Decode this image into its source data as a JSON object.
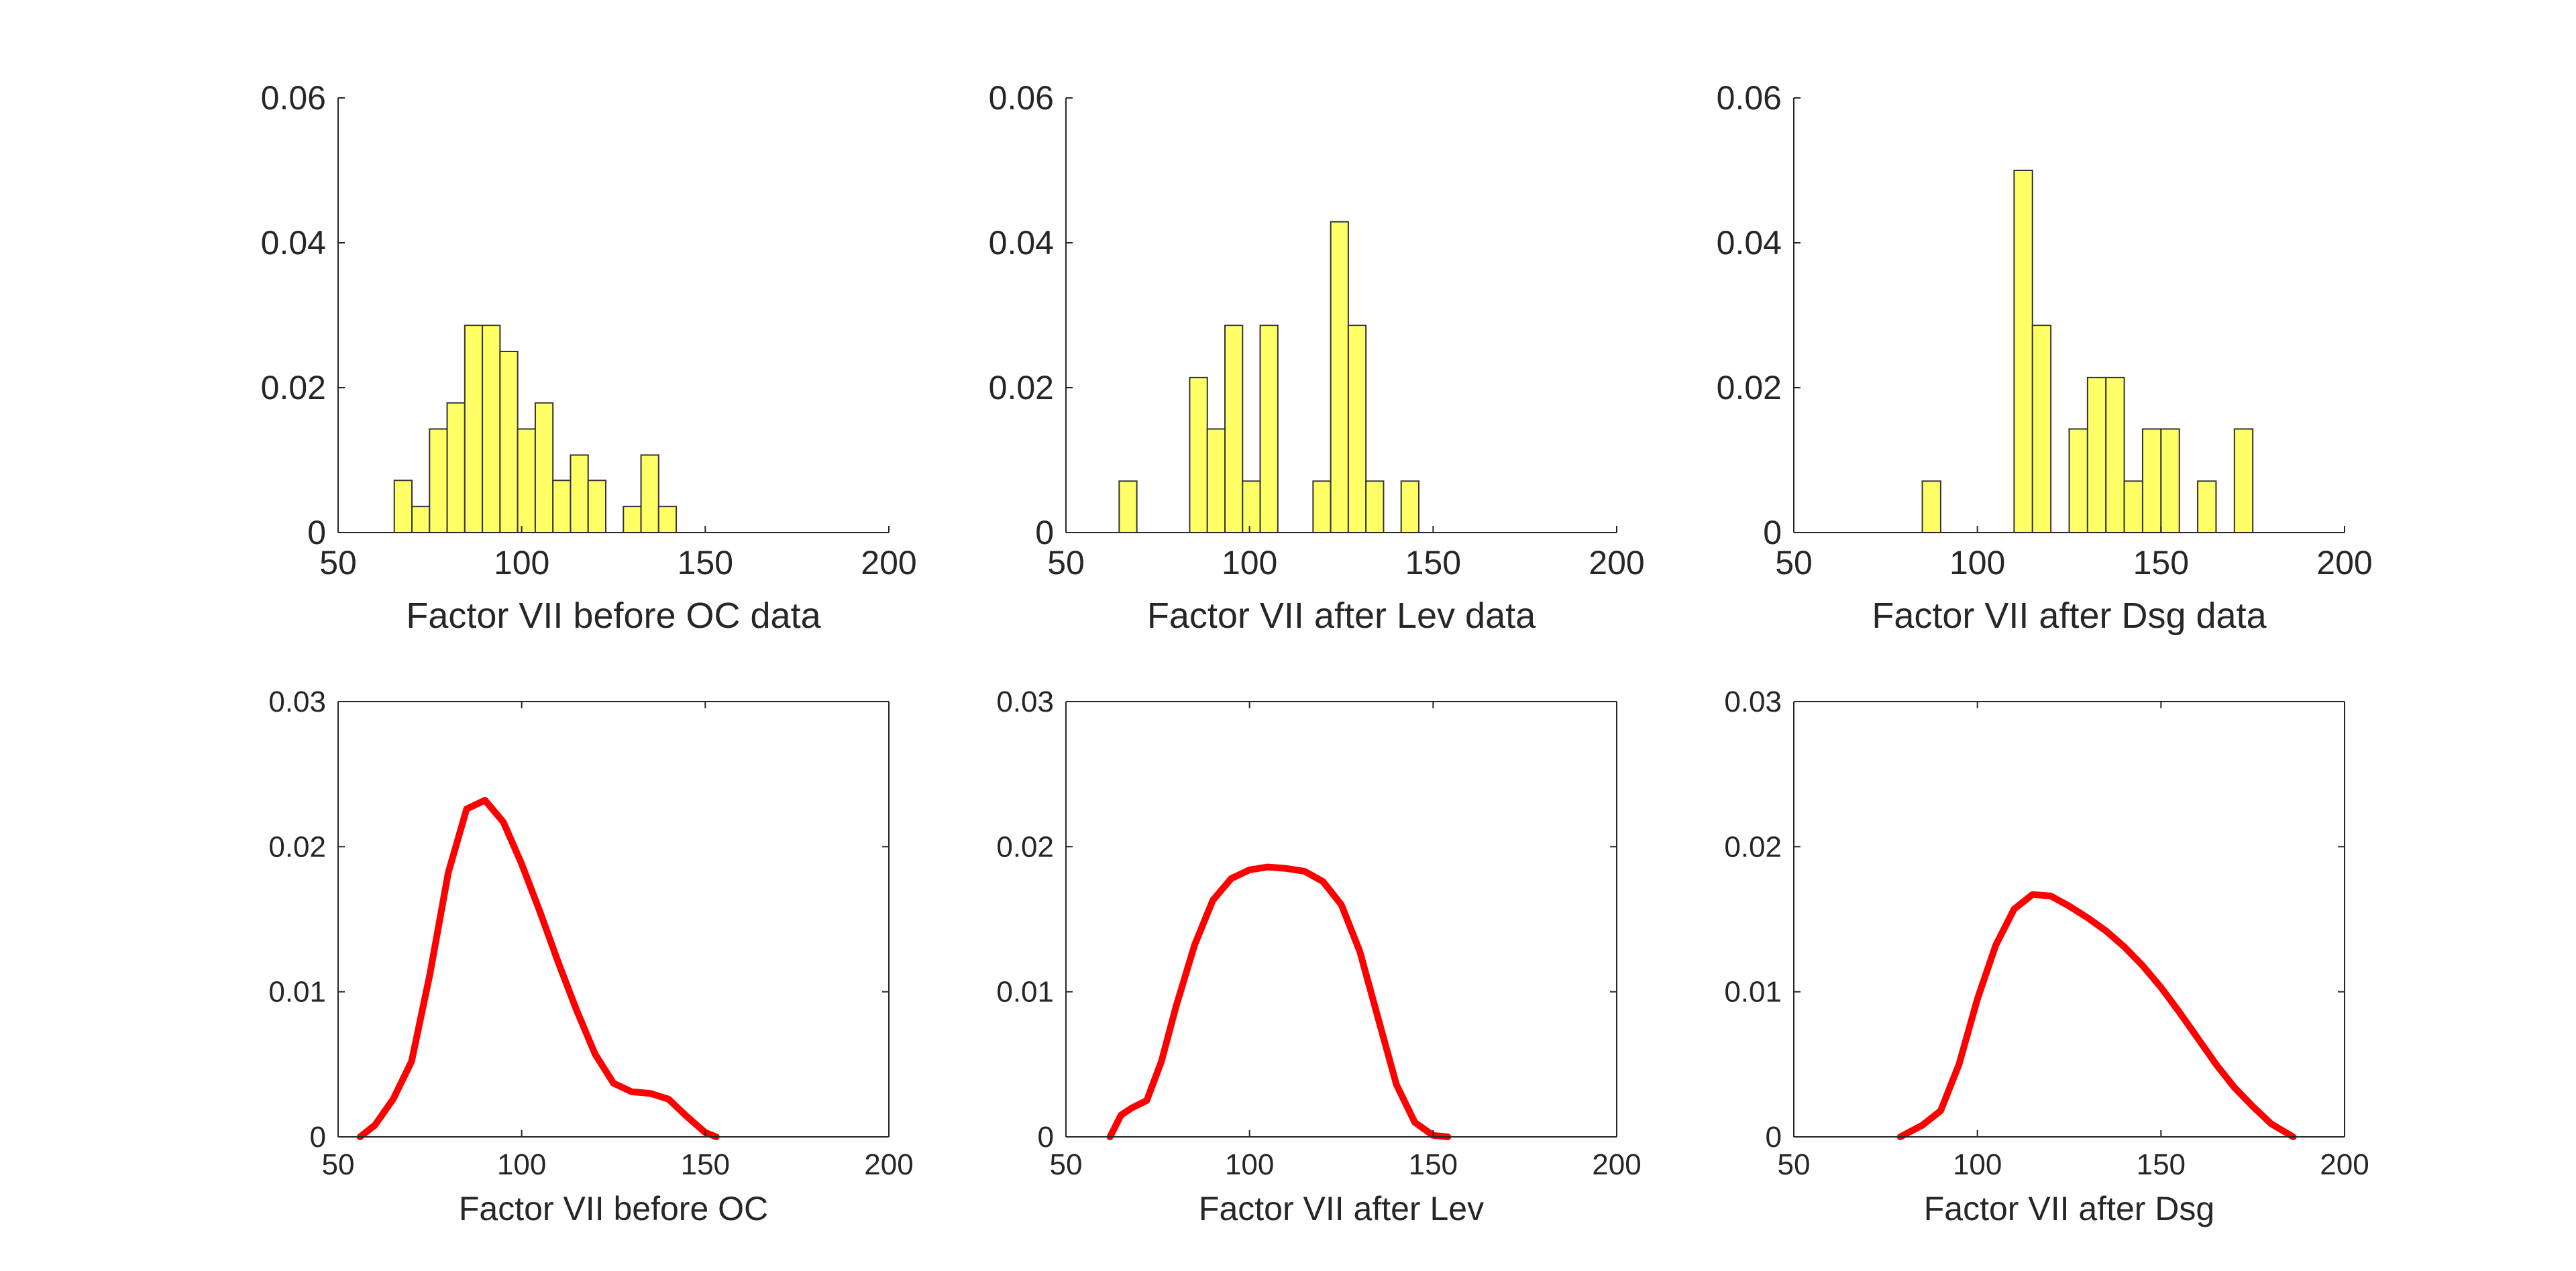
{
  "figure": {
    "background": "#ffffff"
  },
  "chart_data": [
    {
      "type": "bar",
      "subtype": "histogram",
      "xlabel": "Factor VII before OC data",
      "ylabel": "",
      "xlim": [
        50,
        200
      ],
      "ylim": [
        0,
        0.06
      ],
      "xticks": [
        50,
        100,
        150,
        200
      ],
      "xtick_labels": [
        "50",
        "100",
        "150",
        "200"
      ],
      "yticks": [
        0,
        0.02,
        0.04,
        0.06
      ],
      "ytick_labels": [
        "0",
        "0.02",
        "0.04",
        "0.06"
      ],
      "bin_width": 4.8,
      "bin_starts": [
        65.3,
        70.1,
        74.9,
        79.7,
        84.5,
        89.3,
        94.1,
        98.9,
        103.7,
        108.5,
        113.3,
        118.1,
        122.9,
        127.7,
        132.5,
        137.3,
        142.1
      ],
      "values": [
        0.0072,
        0.0036,
        0.0143,
        0.0179,
        0.0286,
        0.0286,
        0.025,
        0.0143,
        0.0179,
        0.0072,
        0.0107,
        0.0072,
        0.0,
        0.0036,
        0.0107,
        0.0036,
        0.0
      ],
      "color": "#ffff66",
      "edge_color": "#333333"
    },
    {
      "type": "bar",
      "subtype": "histogram",
      "xlabel": "Factor VII after Lev data",
      "ylabel": "",
      "xlim": [
        50,
        200
      ],
      "ylim": [
        0,
        0.06
      ],
      "xticks": [
        50,
        100,
        150,
        200
      ],
      "xtick_labels": [
        "50",
        "100",
        "150",
        "200"
      ],
      "yticks": [
        0,
        0.02,
        0.04,
        0.06
      ],
      "ytick_labels": [
        "0",
        "0.02",
        "0.04",
        "0.06"
      ],
      "bin_width": 4.8,
      "bin_starts": [
        64.5,
        69.3,
        74.1,
        78.9,
        83.7,
        88.5,
        93.3,
        98.1,
        102.9,
        107.7,
        112.5,
        117.3,
        122.1,
        126.9,
        131.7,
        136.5,
        141.3
      ],
      "values": [
        0.0071,
        0.0,
        0.0,
        0.0,
        0.0214,
        0.0143,
        0.0286,
        0.0071,
        0.0286,
        0.0,
        0.0,
        0.0071,
        0.0429,
        0.0286,
        0.0071,
        0.0,
        0.0071
      ],
      "color": "#ffff66",
      "edge_color": "#333333"
    },
    {
      "type": "bar",
      "subtype": "histogram",
      "xlabel": "Factor VII after Dsg data",
      "ylabel": "",
      "xlim": [
        50,
        200
      ],
      "ylim": [
        0,
        0.06
      ],
      "xticks": [
        50,
        100,
        150,
        200
      ],
      "xtick_labels": [
        "50",
        "100",
        "150",
        "200"
      ],
      "yticks": [
        0,
        0.02,
        0.04,
        0.06
      ],
      "ytick_labels": [
        "0",
        "0.02",
        "0.04",
        "0.06"
      ],
      "bin_width": 5.0,
      "bin_starts": [
        85,
        90,
        95,
        100,
        105,
        110,
        115,
        120,
        125,
        130,
        135,
        140,
        145,
        150,
        155,
        160,
        165,
        170
      ],
      "values": [
        0.0071,
        0.0,
        0.0,
        0.0,
        0.0,
        0.05,
        0.0286,
        0.0,
        0.0143,
        0.0214,
        0.0214,
        0.0071,
        0.0143,
        0.0143,
        0.0,
        0.0071,
        0.0,
        0.0143
      ],
      "color": "#ffff66",
      "edge_color": "#333333"
    },
    {
      "type": "line",
      "xlabel": "Factor VII before OC",
      "ylabel": "",
      "xlim": [
        50,
        200
      ],
      "ylim": [
        0,
        0.03
      ],
      "xticks": [
        50,
        100,
        150,
        200
      ],
      "xtick_labels": [
        "50",
        "100",
        "150",
        "200"
      ],
      "yticks": [
        0,
        0.01,
        0.02,
        0.03
      ],
      "ytick_labels": [
        "0",
        "0.01",
        "0.02",
        "0.03"
      ],
      "color": "#ff0000",
      "x": [
        56,
        60,
        65,
        70,
        75,
        80,
        85,
        90,
        95,
        100,
        105,
        110,
        115,
        120,
        125,
        130,
        135,
        140,
        145,
        150,
        153
      ],
      "y": [
        0.0,
        0.0008,
        0.0026,
        0.0052,
        0.0112,
        0.0182,
        0.0226,
        0.0232,
        0.0217,
        0.0188,
        0.0155,
        0.012,
        0.0087,
        0.0057,
        0.0037,
        0.0031,
        0.003,
        0.0026,
        0.0014,
        0.0003,
        0.0
      ]
    },
    {
      "type": "line",
      "xlabel": "Factor VII after Lev",
      "ylabel": "",
      "xlim": [
        50,
        200
      ],
      "ylim": [
        0,
        0.03
      ],
      "xticks": [
        50,
        100,
        150,
        200
      ],
      "xtick_labels": [
        "50",
        "100",
        "150",
        "200"
      ],
      "yticks": [
        0,
        0.01,
        0.02,
        0.03
      ],
      "ytick_labels": [
        "0",
        "0.01",
        "0.02",
        "0.03"
      ],
      "color": "#ff0000",
      "x": [
        62,
        65,
        68,
        72,
        76,
        80,
        85,
        90,
        95,
        100,
        105,
        110,
        115,
        120,
        125,
        130,
        135,
        140,
        145,
        150,
        154
      ],
      "y": [
        0.0,
        0.0015,
        0.002,
        0.0025,
        0.0052,
        0.009,
        0.0132,
        0.0163,
        0.0178,
        0.0184,
        0.0186,
        0.0185,
        0.0183,
        0.0176,
        0.016,
        0.0128,
        0.0082,
        0.0036,
        0.001,
        0.0001,
        0.0
      ]
    },
    {
      "type": "line",
      "xlabel": "Factor VII after Dsg",
      "ylabel": "",
      "xlim": [
        50,
        200
      ],
      "ylim": [
        0,
        0.03
      ],
      "xticks": [
        50,
        100,
        150,
        200
      ],
      "xtick_labels": [
        "50",
        "100",
        "150",
        "200"
      ],
      "yticks": [
        0,
        0.01,
        0.02,
        0.03
      ],
      "ytick_labels": [
        "0",
        "0.01",
        "0.02",
        "0.03"
      ],
      "color": "#ff0000",
      "x": [
        79,
        85,
        90,
        95,
        100,
        105,
        110,
        115,
        120,
        125,
        130,
        135,
        140,
        145,
        150,
        155,
        160,
        165,
        170,
        175,
        180,
        186
      ],
      "y": [
        0.0,
        0.0008,
        0.0018,
        0.005,
        0.0095,
        0.0132,
        0.0157,
        0.0167,
        0.0166,
        0.0159,
        0.0151,
        0.0142,
        0.0131,
        0.0118,
        0.0103,
        0.0086,
        0.0068,
        0.005,
        0.0034,
        0.0021,
        0.0009,
        0.0
      ]
    }
  ]
}
